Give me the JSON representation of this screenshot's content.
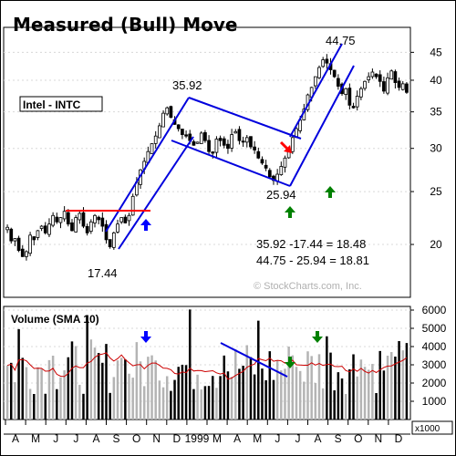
{
  "chart_data": {
    "type": "candlestick",
    "title": "Measured (Bull) Move",
    "symbol_label": "Intel - INTC",
    "watermark": "© StockCharts.com, Inc.",
    "price_axis": {
      "scale": "log",
      "ticks": [
        20,
        25,
        30,
        35,
        40,
        45
      ],
      "range": [
        16,
        50
      ]
    },
    "volume_panel": {
      "label": "Volume (SMA 10)",
      "ticks": [
        1000,
        2000,
        3000,
        4000,
        5000,
        6000
      ],
      "range": [
        0,
        6200
      ],
      "unit_label": "x1000",
      "sma_period": 10
    },
    "x_axis": {
      "labels": [
        "A",
        "M",
        "J",
        "J",
        "A",
        "S",
        "O",
        "N",
        "D",
        "1999",
        "M",
        "A",
        "M",
        "J",
        "J",
        "A",
        "S",
        "O",
        "N",
        "D"
      ]
    },
    "annotations": {
      "low_1": "17.44",
      "high_1": "35.92",
      "low_2": "25.94",
      "high_2": "44.75",
      "calc_1": "35.92 -17.44 = 18.48",
      "calc_2": "44.75 - 25.94  = 18.81"
    },
    "key_prices": {
      "low_1": 17.44,
      "high_1": 35.92,
      "low_2": 25.94,
      "high_2": 44.75,
      "first_move": 18.48,
      "second_move": 18.81
    },
    "colors": {
      "channel": "#0000dd",
      "resistance": "#ff0000",
      "arrow_blue": "#0000ff",
      "arrow_green": "#008000",
      "arrow_red": "#ff0000",
      "sma": "#cc0000"
    },
    "closes": [
      21.5,
      20.3,
      20.5,
      19.5,
      19.0,
      19.4,
      20.8,
      20.4,
      21.2,
      21.6,
      21.0,
      21.8,
      22.6,
      22.0,
      22.4,
      23.0,
      21.8,
      21.2,
      22.4,
      22.8,
      21.6,
      21.0,
      22.0,
      22.6,
      22.2,
      21.6,
      20.4,
      19.8,
      21.0,
      21.8,
      22.4,
      21.9,
      22.6,
      24.5,
      26.0,
      27.4,
      28.4,
      29.6,
      30.6,
      31.6,
      33.0,
      34.8,
      35.6,
      34.2,
      33.2,
      32.6,
      31.8,
      31.6,
      31.0,
      30.4,
      30.8,
      32.0,
      31.0,
      29.6,
      29.4,
      31.2,
      31.0,
      30.4,
      30.0,
      31.8,
      32.2,
      31.0,
      30.8,
      31.4,
      30.2,
      29.8,
      28.8,
      28.2,
      27.6,
      26.6,
      26.2,
      26.9,
      27.8,
      28.8,
      29.6,
      31.4,
      32.6,
      33.8,
      35.4,
      37.6,
      38.8,
      40.6,
      42.2,
      43.6,
      43.0,
      41.8,
      40.6,
      39.0,
      37.8,
      38.6,
      36.0,
      35.6,
      37.4,
      38.6,
      39.8,
      40.6,
      41.4,
      40.6,
      39.8,
      38.2,
      40.4,
      41.6,
      39.6,
      38.8,
      39.4,
      38.0
    ]
  }
}
